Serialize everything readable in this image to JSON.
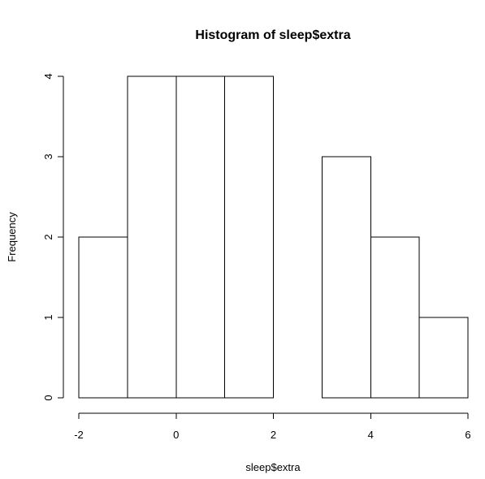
{
  "chart_data": {
    "type": "bar",
    "title": "Histogram of sleep$extra",
    "xlabel": "sleep$extra",
    "ylabel": "Frequency",
    "bins": [
      {
        "from": -2,
        "to": -1,
        "count": 2
      },
      {
        "from": -1,
        "to": 0,
        "count": 4
      },
      {
        "from": 0,
        "to": 1,
        "count": 4
      },
      {
        "from": 1,
        "to": 2,
        "count": 4
      },
      {
        "from": 2,
        "to": 3,
        "count": 0
      },
      {
        "from": 3,
        "to": 4,
        "count": 3
      },
      {
        "from": 4,
        "to": 5,
        "count": 2
      },
      {
        "from": 5,
        "to": 6,
        "count": 1
      }
    ],
    "xlim": [
      -2,
      6
    ],
    "ylim": [
      0,
      4
    ],
    "xticks": [
      -2,
      0,
      2,
      4,
      6
    ],
    "yticks": [
      0,
      1,
      2,
      3,
      4
    ],
    "grid": false,
    "bar_fill": "#ffffff",
    "bar_stroke": "#000000"
  }
}
